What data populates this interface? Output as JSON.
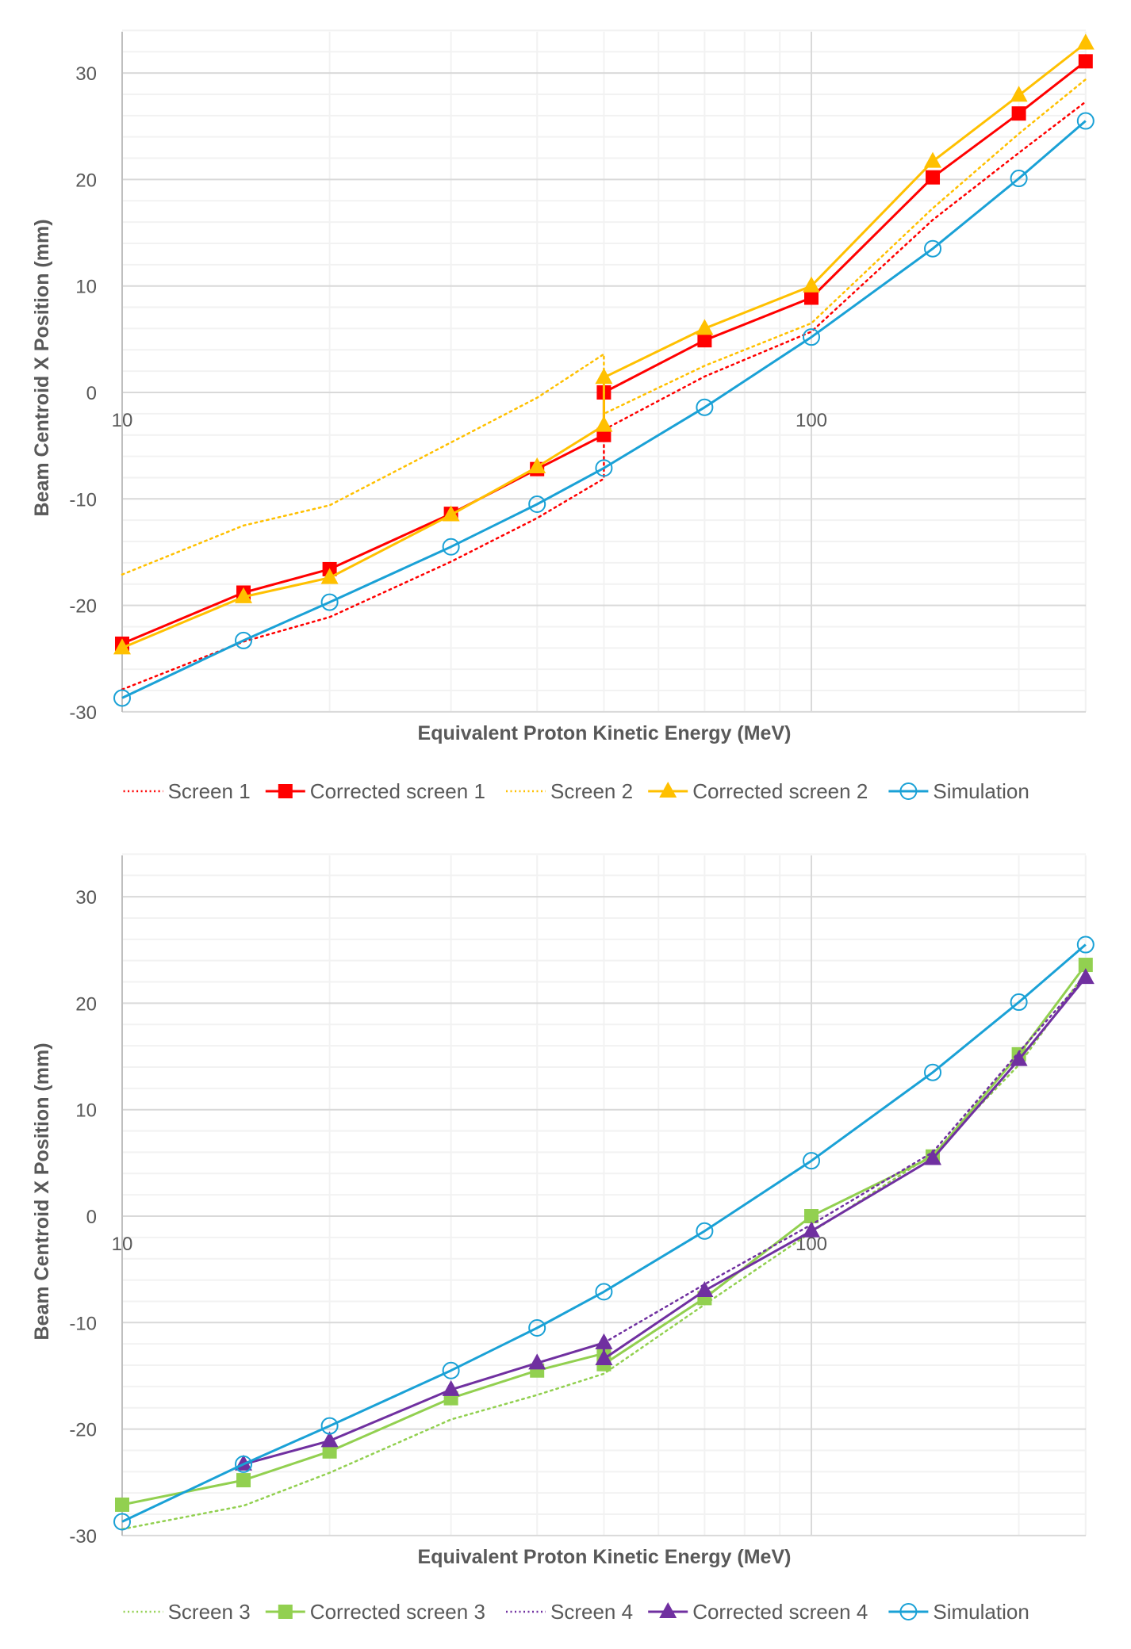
{
  "colors": {
    "screen1": "#FF0000",
    "screen2": "#FFC000",
    "screen3": "#92D050",
    "screen4": "#7030A0",
    "simulation": "#1AA1D6",
    "grid_major": "#D9D9D9",
    "grid_minor": "#F2F2F2",
    "axis": "#BFBFBF",
    "text": "#595959"
  },
  "chart_data": [
    {
      "type": "line",
      "title": "",
      "xlabel": "Equivalent Proton Kinetic Energy (MeV)",
      "ylabel": "Beam Centroid X Position (mm)",
      "xscale": "log",
      "xlim": [
        10,
        250
      ],
      "ylim": [
        -30,
        34
      ],
      "x_ticks": [
        {
          "value": 10,
          "label": "10"
        },
        {
          "value": 100,
          "label": "100"
        }
      ],
      "y_ticks": [
        {
          "value": 30,
          "label": "30"
        },
        {
          "value": 20,
          "label": "20"
        },
        {
          "value": 10,
          "label": "10"
        },
        {
          "value": 0,
          "label": "0"
        },
        {
          "value": -10,
          "label": "-10"
        },
        {
          "value": -20,
          "label": "-20"
        },
        {
          "value": -30,
          "label": "-30"
        }
      ],
      "grid": true,
      "legend_position": "bottom",
      "series": [
        {
          "name": "Screen 1",
          "color_key": "screen1",
          "style": "dotted",
          "marker": "none",
          "points": [
            [
              10,
              -27.9
            ],
            [
              15,
              -23.4
            ],
            [
              20,
              -21.1
            ],
            [
              30,
              -15.9
            ],
            [
              40,
              -11.8
            ],
            [
              50,
              -8.1
            ],
            [
              50,
              -3.5
            ],
            [
              70,
              1.5
            ],
            [
              100,
              5.7
            ],
            [
              150,
              16.2
            ],
            [
              200,
              22.5
            ],
            [
              250,
              27.3
            ]
          ]
        },
        {
          "name": "Corrected screen 1",
          "color_key": "screen1",
          "style": "solid",
          "marker": "square",
          "points": [
            [
              10,
              -23.6
            ],
            [
              15,
              -18.8
            ],
            [
              20,
              -16.6
            ],
            [
              30,
              -11.4
            ],
            [
              40,
              -7.2
            ],
            [
              50,
              -4.0
            ],
            [
              50,
              0.0
            ],
            [
              70,
              4.9
            ],
            [
              100,
              8.9
            ],
            [
              150,
              20.2
            ],
            [
              200,
              26.2
            ],
            [
              250,
              31.1
            ]
          ]
        },
        {
          "name": "Screen 2",
          "color_key": "screen2",
          "style": "dotted",
          "marker": "none",
          "points": [
            [
              10,
              -17.1
            ],
            [
              15,
              -12.5
            ],
            [
              20,
              -10.6
            ],
            [
              30,
              -4.7
            ],
            [
              40,
              -0.5
            ],
            [
              50,
              3.6
            ],
            [
              50,
              -2.0
            ],
            [
              70,
              2.5
            ],
            [
              100,
              6.5
            ],
            [
              150,
              17.3
            ],
            [
              200,
              24.3
            ],
            [
              250,
              29.4
            ]
          ]
        },
        {
          "name": "Corrected screen 2",
          "color_key": "screen2",
          "style": "solid",
          "marker": "triangle",
          "points": [
            [
              10,
              -24.0
            ],
            [
              15,
              -19.2
            ],
            [
              20,
              -17.4
            ],
            [
              30,
              -11.5
            ],
            [
              40,
              -7.0
            ],
            [
              50,
              -3.1
            ],
            [
              50,
              1.4
            ],
            [
              70,
              6.0
            ],
            [
              100,
              10.0
            ],
            [
              150,
              21.7
            ],
            [
              200,
              27.9
            ],
            [
              250,
              32.8
            ]
          ]
        },
        {
          "name": "Simulation",
          "color_key": "simulation",
          "style": "solid",
          "marker": "circle",
          "points": [
            [
              10,
              -28.7
            ],
            [
              15,
              -23.3
            ],
            [
              20,
              -19.7
            ],
            [
              30,
              -14.5
            ],
            [
              40,
              -10.5
            ],
            [
              50,
              -7.1
            ],
            [
              70,
              -1.4
            ],
            [
              100,
              5.2
            ],
            [
              150,
              13.5
            ],
            [
              200,
              20.1
            ],
            [
              250,
              25.5
            ]
          ]
        }
      ]
    },
    {
      "type": "line",
      "title": "",
      "xlabel": "Equivalent Proton Kinetic Energy (MeV)",
      "ylabel": "Beam Centroid X Position (mm)",
      "xscale": "log",
      "xlim": [
        10,
        250
      ],
      "ylim": [
        -30,
        34
      ],
      "x_ticks": [
        {
          "value": 10,
          "label": "10"
        },
        {
          "value": 100,
          "label": "100"
        }
      ],
      "y_ticks": [
        {
          "value": 30,
          "label": "30"
        },
        {
          "value": 20,
          "label": "20"
        },
        {
          "value": 10,
          "label": "10"
        },
        {
          "value": 0,
          "label": "0"
        },
        {
          "value": -10,
          "label": "-10"
        },
        {
          "value": -20,
          "label": "-20"
        },
        {
          "value": -30,
          "label": "-30"
        }
      ],
      "grid": true,
      "legend_position": "bottom",
      "series": [
        {
          "name": "Screen 3",
          "color_key": "screen3",
          "style": "dotted",
          "marker": "none",
          "points": [
            [
              10,
              -29.4
            ],
            [
              15,
              -27.2
            ],
            [
              20,
              -24.1
            ],
            [
              30,
              -19.1
            ],
            [
              40,
              -16.8
            ],
            [
              50,
              -14.8
            ],
            [
              70,
              -8.3
            ],
            [
              100,
              -1.5
            ],
            [
              150,
              5.8
            ],
            [
              200,
              14.2
            ],
            [
              250,
              22.9
            ]
          ]
        },
        {
          "name": "Corrected screen 3",
          "color_key": "screen3",
          "style": "solid",
          "marker": "square",
          "points": [
            [
              10,
              -27.1
            ],
            [
              15,
              -24.8
            ],
            [
              20,
              -22.1
            ],
            [
              30,
              -17.1
            ],
            [
              40,
              -14.5
            ],
            [
              50,
              -12.9
            ],
            [
              50,
              -13.9
            ],
            [
              70,
              -7.7
            ],
            [
              100,
              0.0
            ],
            [
              150,
              5.6
            ],
            [
              200,
              15.2
            ],
            [
              250,
              23.6
            ]
          ]
        },
        {
          "name": "Screen 4",
          "color_key": "screen4",
          "style": "dotted",
          "marker": "none",
          "points": [
            [
              50,
              -11.9
            ],
            [
              70,
              -6.4
            ],
            [
              100,
              -0.8
            ],
            [
              150,
              6.0
            ],
            [
              200,
              15.4
            ],
            [
              250,
              22.5
            ]
          ]
        },
        {
          "name": "Corrected screen 4",
          "color_key": "screen4",
          "style": "solid",
          "marker": "triangle",
          "points": [
            [
              15,
              -23.3
            ],
            [
              20,
              -21.1
            ],
            [
              30,
              -16.3
            ],
            [
              40,
              -13.8
            ],
            [
              50,
              -11.9
            ],
            [
              50,
              -13.4
            ],
            [
              70,
              -7.0
            ],
            [
              100,
              -1.4
            ],
            [
              150,
              5.4
            ],
            [
              200,
              14.7
            ],
            [
              250,
              22.4
            ]
          ]
        },
        {
          "name": "Simulation",
          "color_key": "simulation",
          "style": "solid",
          "marker": "circle",
          "points": [
            [
              10,
              -28.7
            ],
            [
              15,
              -23.3
            ],
            [
              20,
              -19.7
            ],
            [
              30,
              -14.5
            ],
            [
              40,
              -10.5
            ],
            [
              50,
              -7.1
            ],
            [
              70,
              -1.4
            ],
            [
              100,
              5.2
            ],
            [
              150,
              13.5
            ],
            [
              200,
              20.1
            ],
            [
              250,
              25.5
            ]
          ]
        }
      ]
    }
  ]
}
